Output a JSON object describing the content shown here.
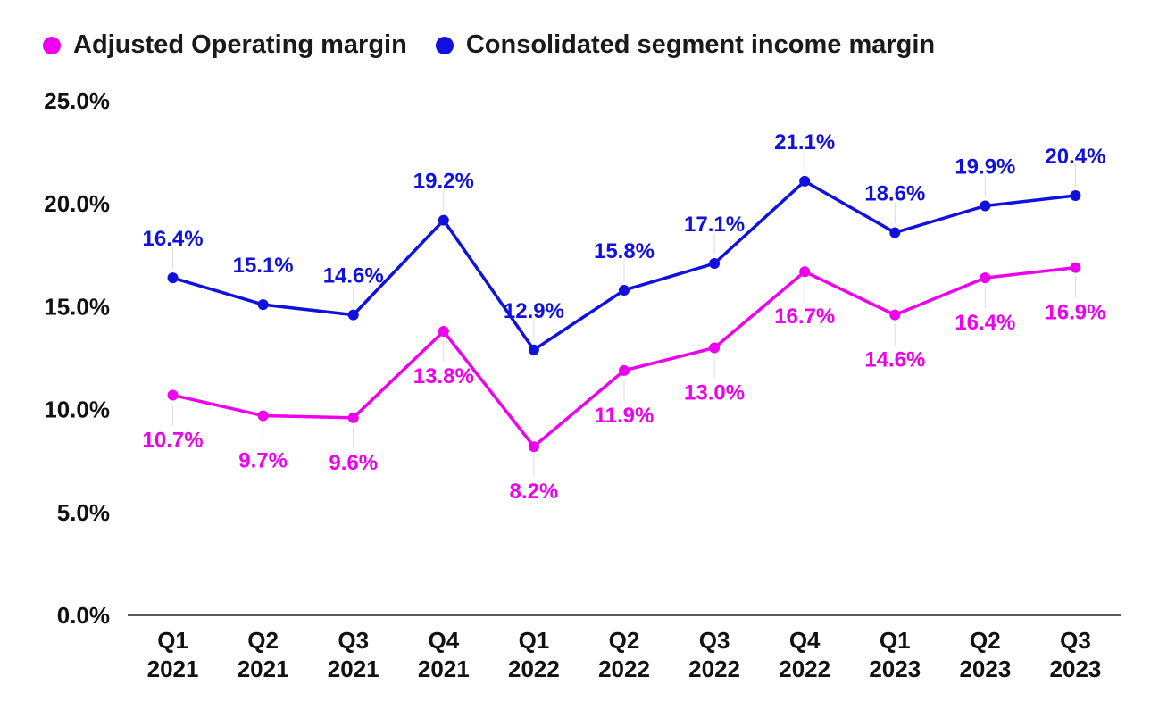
{
  "chart_data": {
    "type": "line",
    "categories": [
      [
        "Q1",
        "2021"
      ],
      [
        "Q2",
        "2021"
      ],
      [
        "Q3",
        "2021"
      ],
      [
        "Q4",
        "2021"
      ],
      [
        "Q1",
        "2022"
      ],
      [
        "Q2",
        "2022"
      ],
      [
        "Q3",
        "2022"
      ],
      [
        "Q4",
        "2022"
      ],
      [
        "Q1",
        "2023"
      ],
      [
        "Q2",
        "2023"
      ],
      [
        "Q3",
        "2023"
      ]
    ],
    "series": [
      {
        "name": "Adjusted Operating margin",
        "color": "#ee00ee",
        "values": [
          10.7,
          9.7,
          9.6,
          13.8,
          8.2,
          11.9,
          13.0,
          16.7,
          14.6,
          16.4,
          16.9
        ],
        "labels": [
          "10.7%",
          "9.7%",
          "9.6%",
          "13.8%",
          "8.2%",
          "11.9%",
          "13.0%",
          "16.7%",
          "14.6%",
          "16.4%",
          "16.9%"
        ],
        "label_side": [
          "below",
          "below",
          "below",
          "below",
          "below",
          "below",
          "below",
          "below",
          "below",
          "below",
          "below"
        ]
      },
      {
        "name": "Consolidated segment income margin",
        "color": "#1111dd",
        "values": [
          16.4,
          15.1,
          14.6,
          19.2,
          12.9,
          15.8,
          17.1,
          21.1,
          18.6,
          19.9,
          20.4
        ],
        "labels": [
          "16.4%",
          "15.1%",
          "14.6%",
          "19.2%",
          "12.9%",
          "15.8%",
          "17.1%",
          "21.1%",
          "18.6%",
          "19.9%",
          "20.4%"
        ],
        "label_side": [
          "above",
          "above",
          "above",
          "above",
          "above",
          "above",
          "above",
          "above",
          "above",
          "above",
          "above"
        ]
      }
    ],
    "y_ticks": [
      "0.0%",
      "5.0%",
      "10.0%",
      "15.0%",
      "20.0%",
      "25.0%"
    ],
    "ylim": [
      0,
      25
    ],
    "title": "",
    "xlabel": "",
    "ylabel": "",
    "grid": false,
    "legend_position": "top-left"
  },
  "legend": {
    "items": [
      {
        "label": "Adjusted Operating margin",
        "color": "#ee00ee"
      },
      {
        "label": "Consolidated segment income margin",
        "color": "#1111dd"
      }
    ]
  }
}
